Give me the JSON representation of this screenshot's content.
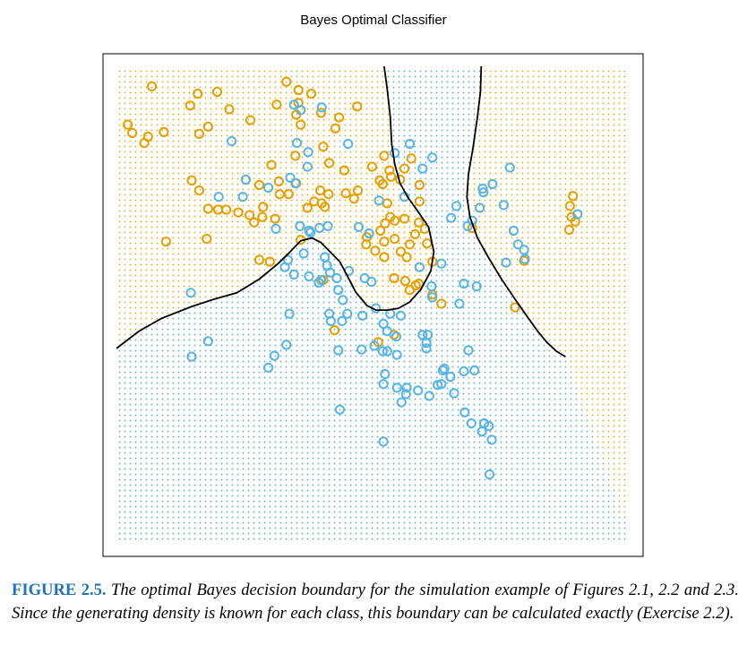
{
  "chart_data": {
    "type": "scatter",
    "title": "Bayes Optimal Classifier",
    "xlabel": "",
    "ylabel": "",
    "xlim": [
      -2.6,
      4.2
    ],
    "ylim": [
      -2.2,
      3.0
    ],
    "axes_visible": false,
    "background": "dotted grid colored by predicted class",
    "colors": {
      "orange": "#E69F00",
      "blue": "#56B4E9",
      "boundary": "#000000"
    },
    "series": [
      {
        "color": "orange",
        "points": [
          [
            -2.13,
            2.78
          ],
          [
            -1.52,
            2.7
          ],
          [
            -1.26,
            2.72
          ],
          [
            -0.34,
            2.83
          ],
          [
            -0.18,
            2.74
          ],
          [
            -0.01,
            2.7
          ],
          [
            -1.62,
            2.57
          ],
          [
            -0.47,
            2.58
          ],
          [
            -0.18,
            2.6
          ],
          [
            0.6,
            2.56
          ],
          [
            -1.1,
            2.53
          ],
          [
            -0.21,
            2.47
          ],
          [
            0.12,
            2.49
          ],
          [
            0.36,
            2.44
          ],
          [
            -0.82,
            2.41
          ],
          [
            -2.45,
            2.36
          ],
          [
            -2.39,
            2.27
          ],
          [
            -2.18,
            2.23
          ],
          [
            -1.97,
            2.28
          ],
          [
            -1.5,
            2.26
          ],
          [
            -1.38,
            2.34
          ],
          [
            -2.23,
            2.16
          ],
          [
            -0.15,
            2.36
          ],
          [
            0.31,
            2.32
          ],
          [
            0.15,
            2.12
          ],
          [
            -2.74,
            2.17
          ],
          [
            -0.22,
            2.02
          ],
          [
            0.96,
            2.02
          ],
          [
            1.32,
            1.99
          ],
          [
            0.23,
            1.94
          ],
          [
            0.43,
            1.86
          ],
          [
            0.8,
            1.9
          ],
          [
            1.03,
            1.86
          ],
          [
            1.23,
            1.88
          ],
          [
            1.05,
            1.79
          ],
          [
            1.17,
            1.76
          ],
          [
            -0.54,
            1.92
          ],
          [
            -0.7,
            1.7
          ],
          [
            -0.44,
            1.74
          ],
          [
            -0.21,
            1.72
          ],
          [
            0.11,
            1.64
          ],
          [
            -0.43,
            1.6
          ],
          [
            -0.31,
            1.6
          ],
          [
            -1.6,
            1.75
          ],
          [
            -1.5,
            1.64
          ],
          [
            0.9,
            1.75
          ],
          [
            0.61,
            1.64
          ],
          [
            0.94,
            1.71
          ],
          [
            1.43,
            1.7
          ],
          [
            0.22,
            1.6
          ],
          [
            0.45,
            1.61
          ],
          [
            -0.65,
            1.46
          ],
          [
            -1.38,
            1.44
          ],
          [
            -1.25,
            1.43
          ],
          [
            -1.14,
            1.43
          ],
          [
            -0.98,
            1.4
          ],
          [
            -0.83,
            1.37
          ],
          [
            -0.66,
            1.35
          ],
          [
            -0.49,
            1.33
          ],
          [
            -0.77,
            1.29
          ],
          [
            0.03,
            1.52
          ],
          [
            0.13,
            1.5
          ],
          [
            -0.06,
            1.45
          ],
          [
            0.17,
            1.46
          ],
          [
            0.56,
            1.55
          ],
          [
            1.0,
            1.5
          ],
          [
            1.43,
            1.52
          ],
          [
            1.04,
            1.35
          ],
          [
            0.97,
            1.28
          ],
          [
            0.91,
            1.2
          ],
          [
            1.1,
            1.31
          ],
          [
            1.23,
            1.33
          ],
          [
            1.42,
            1.29
          ],
          [
            1.5,
            1.22
          ],
          [
            1.37,
            1.16
          ],
          [
            1.53,
            1.06
          ],
          [
            1.3,
            1.05
          ],
          [
            1.1,
            1.11
          ],
          [
            0.96,
            1.08
          ],
          [
            0.84,
            0.98
          ],
          [
            0.96,
            0.91
          ],
          [
            1.18,
            0.97
          ],
          [
            1.26,
            0.91
          ],
          [
            2.13,
            1.23
          ],
          [
            3.47,
            1.58
          ],
          [
            3.43,
            1.47
          ],
          [
            3.45,
            1.35
          ],
          [
            3.5,
            1.3
          ],
          [
            3.42,
            1.21
          ],
          [
            -2.73,
            1.3
          ],
          [
            -1.94,
            1.08
          ],
          [
            -1.4,
            1.11
          ],
          [
            -0.7,
            0.88
          ],
          [
            -0.56,
            0.86
          ],
          [
            0.15,
            0.66
          ],
          [
            1.6,
            0.86
          ],
          [
            0.73,
            1.13
          ],
          [
            0.72,
            1.05
          ],
          [
            1.09,
            0.68
          ],
          [
            1.24,
            0.65
          ],
          [
            1.3,
            0.55
          ],
          [
            1.38,
            0.6
          ],
          [
            1.42,
            0.62
          ],
          [
            1.6,
            0.5
          ],
          [
            1.72,
            0.4
          ],
          [
            2.82,
            0.87
          ],
          [
            2.7,
            0.36
          ],
          [
            0.3,
            0.11
          ],
          [
            0.88,
            -0.02
          ],
          [
            1.09,
            0.06
          ],
          [
            -0.15,
            1.1
          ]
        ]
      },
      {
        "color": "blue",
        "points": [
          [
            -0.24,
            2.58
          ],
          [
            -0.15,
            2.52
          ],
          [
            0.13,
            2.55
          ],
          [
            -1.07,
            2.18
          ],
          [
            -0.2,
            2.16
          ],
          [
            0.48,
            2.15
          ],
          [
            1.3,
            2.15
          ],
          [
            1.1,
            2.05
          ],
          [
            1.6,
            2.0
          ],
          [
            -0.05,
            2.06
          ],
          [
            -0.06,
            1.9
          ],
          [
            1.47,
            1.88
          ],
          [
            2.63,
            1.89
          ],
          [
            -0.88,
            1.76
          ],
          [
            -0.58,
            1.67
          ],
          [
            -0.22,
            1.72
          ],
          [
            -0.29,
            1.78
          ],
          [
            2.4,
            1.71
          ],
          [
            2.27,
            1.66
          ],
          [
            2.28,
            1.62
          ],
          [
            -1.24,
            1.57
          ],
          [
            -0.92,
            1.57
          ],
          [
            0.89,
            1.53
          ],
          [
            1.23,
            1.57
          ],
          [
            1.92,
            1.47
          ],
          [
            2.23,
            1.45
          ],
          [
            2.55,
            1.48
          ],
          [
            3.53,
            1.38
          ],
          [
            -0.48,
            1.22
          ],
          [
            -0.16,
            1.25
          ],
          [
            -0.04,
            1.2
          ],
          [
            0.1,
            1.23
          ],
          [
            0.21,
            1.25
          ],
          [
            -0.02,
            1.18
          ],
          [
            0.62,
            1.24
          ],
          [
            0.76,
            1.17
          ],
          [
            2.13,
            1.31
          ],
          [
            1.85,
            1.34
          ],
          [
            2.07,
            1.25
          ],
          [
            2.68,
            1.2
          ],
          [
            2.74,
            1.05
          ],
          [
            2.82,
            0.99
          ],
          [
            -0.11,
            0.95
          ],
          [
            -0.32,
            0.88
          ],
          [
            0.17,
            0.91
          ],
          [
            -0.36,
            0.8
          ],
          [
            0.2,
            0.82
          ],
          [
            2.58,
            0.85
          ],
          [
            2.83,
            0.89
          ],
          [
            -0.24,
            0.72
          ],
          [
            -0.04,
            0.7
          ],
          [
            0.12,
            0.66
          ],
          [
            0.24,
            0.74
          ],
          [
            0.33,
            0.68
          ],
          [
            0.49,
            0.76
          ],
          [
            0.7,
            0.68
          ],
          [
            0.79,
            0.64
          ],
          [
            0.35,
            0.55
          ],
          [
            0.09,
            0.63
          ],
          [
            0.41,
            0.44
          ],
          [
            1.43,
            0.8
          ],
          [
            1.59,
            0.59
          ],
          [
            1.6,
            0.47
          ],
          [
            1.72,
            0.84
          ],
          [
            2.02,
            0.62
          ],
          [
            2.19,
            0.59
          ],
          [
            1.96,
            0.4
          ],
          [
            -1.61,
            0.52
          ],
          [
            -0.3,
            0.29
          ],
          [
            0.23,
            0.29
          ],
          [
            0.25,
            0.21
          ],
          [
            0.4,
            0.21
          ],
          [
            0.47,
            0.29
          ],
          [
            0.67,
            0.27
          ],
          [
            0.85,
            0.35
          ],
          [
            0.95,
            0.18
          ],
          [
            1.04,
            0.29
          ],
          [
            1.18,
            0.27
          ],
          [
            1.0,
            0.1
          ],
          [
            1.12,
            0.04
          ],
          [
            1.47,
            0.06
          ],
          [
            1.54,
            0.06
          ],
          [
            1.52,
            -0.03
          ],
          [
            1.52,
            -0.09
          ],
          [
            0.83,
            -0.06
          ],
          [
            0.94,
            -0.12
          ],
          [
            2.08,
            -0.11
          ],
          [
            -1.38,
            -0.01
          ],
          [
            -0.34,
            -0.05
          ],
          [
            0.35,
            -0.11
          ],
          [
            0.66,
            -0.1
          ],
          [
            1.13,
            -0.16
          ],
          [
            1.0,
            -0.12
          ],
          [
            -1.6,
            -0.18
          ],
          [
            -0.5,
            -0.17
          ],
          [
            1.74,
            -0.33
          ],
          [
            1.76,
            -0.31
          ],
          [
            2.16,
            -0.33
          ],
          [
            2.02,
            -0.34
          ],
          [
            1.84,
            -0.4
          ],
          [
            -0.58,
            -0.3
          ],
          [
            0.97,
            -0.37
          ],
          [
            1.13,
            -0.52
          ],
          [
            1.26,
            -0.52
          ],
          [
            1.41,
            -0.55
          ],
          [
            1.72,
            -0.48
          ],
          [
            0.95,
            -0.48
          ],
          [
            1.25,
            -0.59
          ],
          [
            1.56,
            -0.61
          ],
          [
            1.67,
            -0.49
          ],
          [
            1.89,
            -0.58
          ],
          [
            1.19,
            -0.68
          ],
          [
            2.03,
            -0.79
          ],
          [
            2.12,
            -0.91
          ],
          [
            2.29,
            -0.91
          ],
          [
            2.35,
            -0.94
          ],
          [
            2.26,
            -1.0
          ],
          [
            2.39,
            -1.09
          ],
          [
            0.95,
            -1.11
          ],
          [
            0.37,
            -0.76
          ],
          [
            2.36,
            -1.47
          ]
        ]
      }
    ],
    "boundaries": [
      [
        [
          -2.6,
          -0.09
        ],
        [
          -2.3,
          0.1
        ],
        [
          -2.0,
          0.24
        ],
        [
          -1.6,
          0.37
        ],
        [
          -1.3,
          0.45
        ],
        [
          -1.0,
          0.52
        ],
        [
          -0.7,
          0.67
        ],
        [
          -0.45,
          0.84
        ],
        [
          -0.3,
          0.96
        ],
        [
          -0.15,
          1.09
        ],
        [
          0.0,
          1.12
        ],
        [
          0.12,
          1.07
        ],
        [
          0.25,
          0.96
        ],
        [
          0.37,
          0.86
        ],
        [
          0.48,
          0.69
        ],
        [
          0.58,
          0.53
        ],
        [
          0.73,
          0.38
        ],
        [
          0.85,
          0.33
        ],
        [
          1.0,
          0.33
        ],
        [
          1.15,
          0.35
        ],
        [
          1.3,
          0.42
        ],
        [
          1.45,
          0.56
        ],
        [
          1.58,
          0.76
        ],
        [
          1.62,
          0.97
        ],
        [
          1.55,
          1.24
        ],
        [
          1.4,
          1.42
        ],
        [
          1.27,
          1.57
        ],
        [
          1.17,
          1.72
        ],
        [
          1.1,
          1.93
        ],
        [
          1.06,
          2.15
        ],
        [
          1.04,
          2.45
        ],
        [
          1.0,
          2.75
        ],
        [
          0.96,
          3.0
        ]
      ],
      [
        [
          2.25,
          3.0
        ],
        [
          2.24,
          2.72
        ],
        [
          2.2,
          2.45
        ],
        [
          2.14,
          2.1
        ],
        [
          2.08,
          1.82
        ],
        [
          2.06,
          1.57
        ],
        [
          2.1,
          1.35
        ],
        [
          2.2,
          1.12
        ],
        [
          2.35,
          0.9
        ],
        [
          2.52,
          0.67
        ],
        [
          2.7,
          0.45
        ],
        [
          2.87,
          0.25
        ],
        [
          3.0,
          0.1
        ],
        [
          3.12,
          -0.02
        ],
        [
          3.25,
          -0.12
        ],
        [
          3.37,
          -0.18
        ]
      ]
    ]
  },
  "caption": {
    "label": "FIGURE 2.5.",
    "text": "The optimal Bayes decision boundary for the simulation example of Figures 2.1, 2.2 and 2.3. Since the generating density is known for each class, this boundary can be calculated exactly (Exercise 2.2)."
  }
}
